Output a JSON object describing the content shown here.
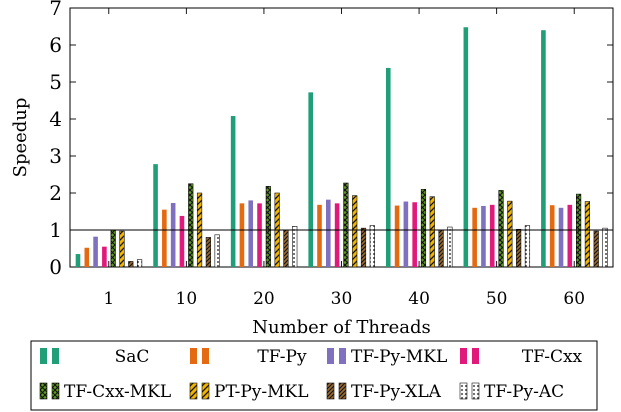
{
  "chart_data": {
    "type": "bar",
    "xlabel": "Number of Threads",
    "ylabel": "Speedup",
    "ylim": [
      0,
      7
    ],
    "yticks": [
      0,
      1,
      2,
      3,
      4,
      5,
      6,
      7
    ],
    "reference_line": 1,
    "grid": false,
    "legend_position": "bottom",
    "categories": [
      "1",
      "10",
      "20",
      "30",
      "40",
      "50",
      "60"
    ],
    "series": [
      {
        "name": "SaC",
        "color": "#1f9e78",
        "pattern": "solid",
        "values": [
          0.35,
          2.78,
          4.08,
          4.72,
          5.38,
          6.48,
          6.4
        ]
      },
      {
        "name": "TF-Py",
        "color": "#e46a12",
        "pattern": "solid",
        "values": [
          0.52,
          1.55,
          1.72,
          1.68,
          1.66,
          1.6,
          1.67
        ]
      },
      {
        "name": "TF-Py-MKL",
        "color": "#8070c0",
        "pattern": "solid",
        "values": [
          0.82,
          1.73,
          1.8,
          1.82,
          1.77,
          1.65,
          1.6
        ]
      },
      {
        "name": "TF-Cxx",
        "color": "#e0197a",
        "pattern": "solid",
        "values": [
          0.55,
          1.38,
          1.72,
          1.72,
          1.75,
          1.68,
          1.68
        ]
      },
      {
        "name": "TF-Cxx-MKL",
        "color": "#5d9a1f",
        "pattern": "crosshatch",
        "values": [
          1.0,
          2.25,
          2.18,
          2.27,
          2.1,
          2.07,
          1.97
        ]
      },
      {
        "name": "PT-Py-MKL",
        "color": "#f0b400",
        "pattern": "diagonal",
        "values": [
          0.97,
          2.0,
          2.0,
          1.93,
          1.9,
          1.78,
          1.77
        ]
      },
      {
        "name": "TF-Py-XLA",
        "color": "#9a6a2e",
        "pattern": "diagonal-dense",
        "values": [
          0.15,
          0.8,
          1.0,
          1.05,
          1.0,
          1.02,
          0.97
        ]
      },
      {
        "name": "TF-Py-AC",
        "color": "#555555",
        "pattern": "dots",
        "values": [
          0.2,
          0.87,
          1.1,
          1.12,
          1.08,
          1.12,
          1.05
        ]
      }
    ]
  }
}
